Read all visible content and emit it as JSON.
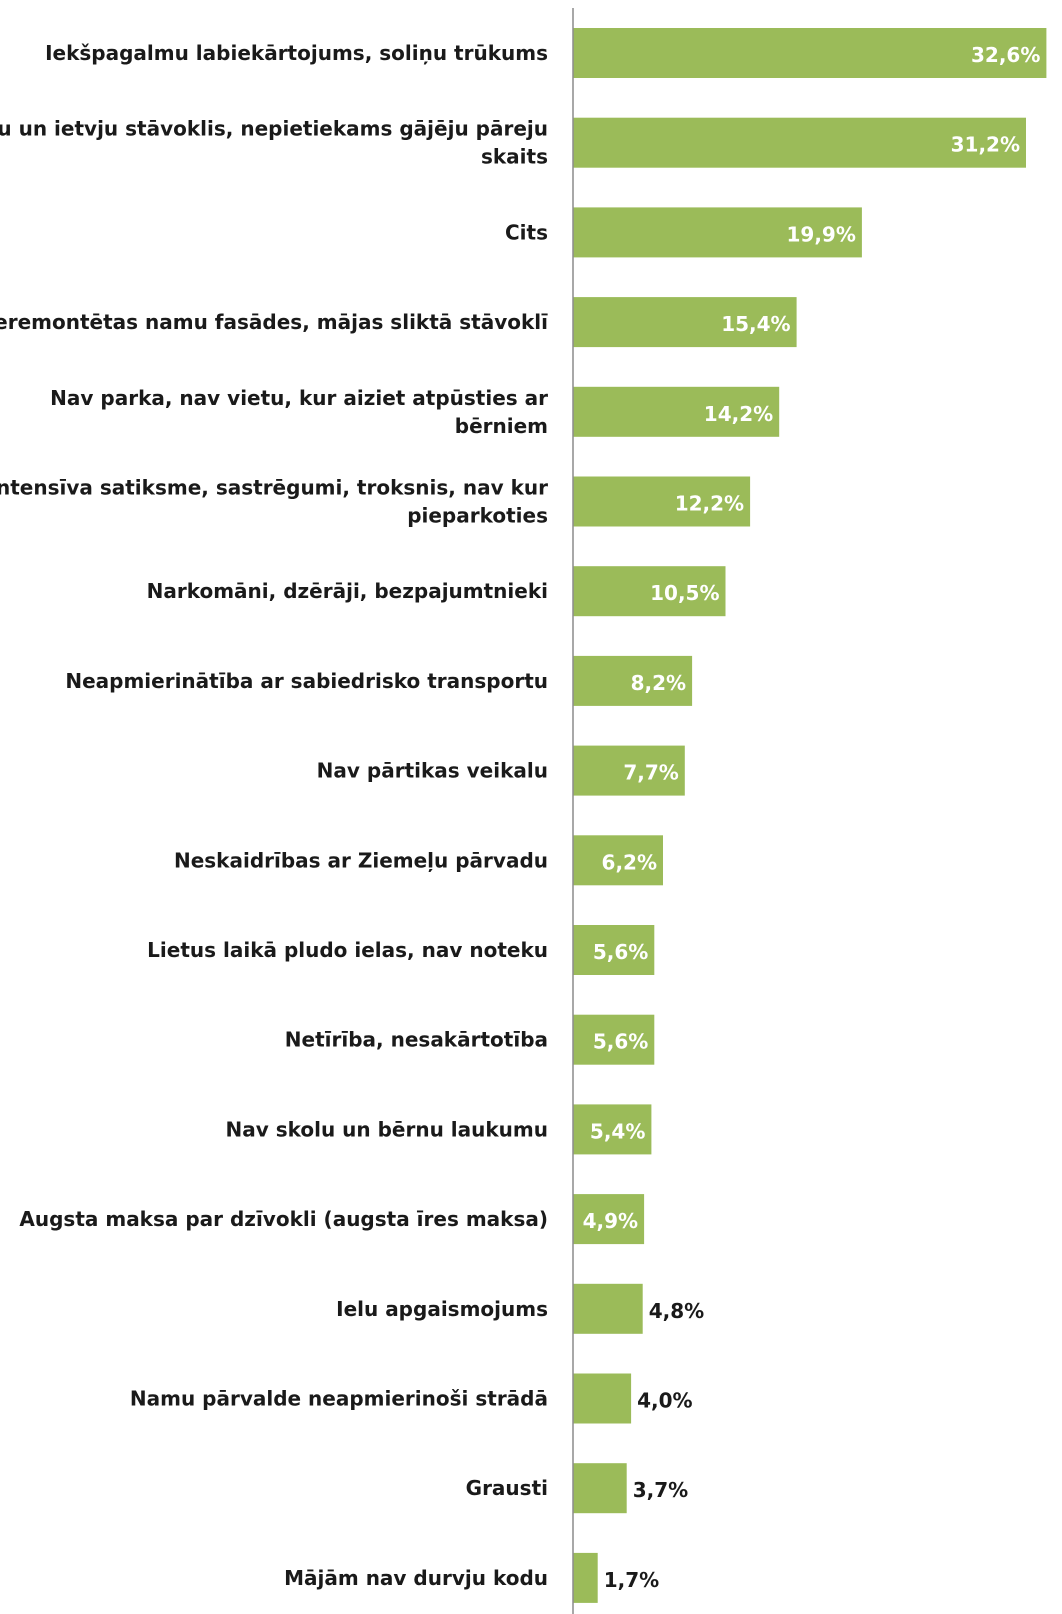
{
  "chart_data": {
    "type": "bar",
    "orientation": "horizontal",
    "title": "",
    "xlabel": "",
    "ylabel": "",
    "xlim": [
      0,
      34
    ],
    "grid": false,
    "legend": "none",
    "bar_color": "#9BBB59",
    "categories": [
      [
        "Iekšpagalmu labiekārtojums, soliņu trūkums"
      ],
      [
        "Ceļu un ietvju stāvoklis, nepietiekams gājēju pāreju",
        "skaits"
      ],
      [
        "Cits"
      ],
      [
        "Neremontētas namu fasādes, mājas sliktā stāvoklī"
      ],
      [
        "Nav parka, nav vietu, kur aiziet atpūsties ar",
        "bērniem"
      ],
      [
        "Intensīva satiksme, sastrēgumi, troksnis, nav kur",
        "pieparkoties"
      ],
      [
        "Narkomāni, dzērāji, bezpajumtnieki"
      ],
      [
        "Neapmierinātība ar sabiedrisko transportu"
      ],
      [
        "Nav pārtikas veikalu"
      ],
      [
        "Neskaidrības ar Ziemeļu pārvadu"
      ],
      [
        "Lietus laikā pludo ielas, nav noteku"
      ],
      [
        "Netīrība, nesakārtotība"
      ],
      [
        "Nav skolu un bērnu laukumu"
      ],
      [
        "Augsta maksa par dzīvokli (augsta īres maksa)"
      ],
      [
        "Ielu apgaismojums"
      ],
      [
        "Namu pārvalde neapmierinoši strādā"
      ],
      [
        "Grausti"
      ],
      [
        "Mājām nav durvju kodu"
      ]
    ],
    "values": [
      32.6,
      31.2,
      19.9,
      15.4,
      14.2,
      12.2,
      10.5,
      8.2,
      7.7,
      6.2,
      5.6,
      5.6,
      5.4,
      4.9,
      4.8,
      4.0,
      3.7,
      1.7
    ],
    "value_labels": [
      "32,6%",
      "31,2%",
      "19,9%",
      "15,4%",
      "14,2%",
      "12,2%",
      "10,5%",
      "8,2%",
      "7,7%",
      "6,2%",
      "5,6%",
      "5,6%",
      "5,4%",
      "4,9%",
      "4,8%",
      "4,0%",
      "3,7%",
      "1,7%"
    ]
  }
}
